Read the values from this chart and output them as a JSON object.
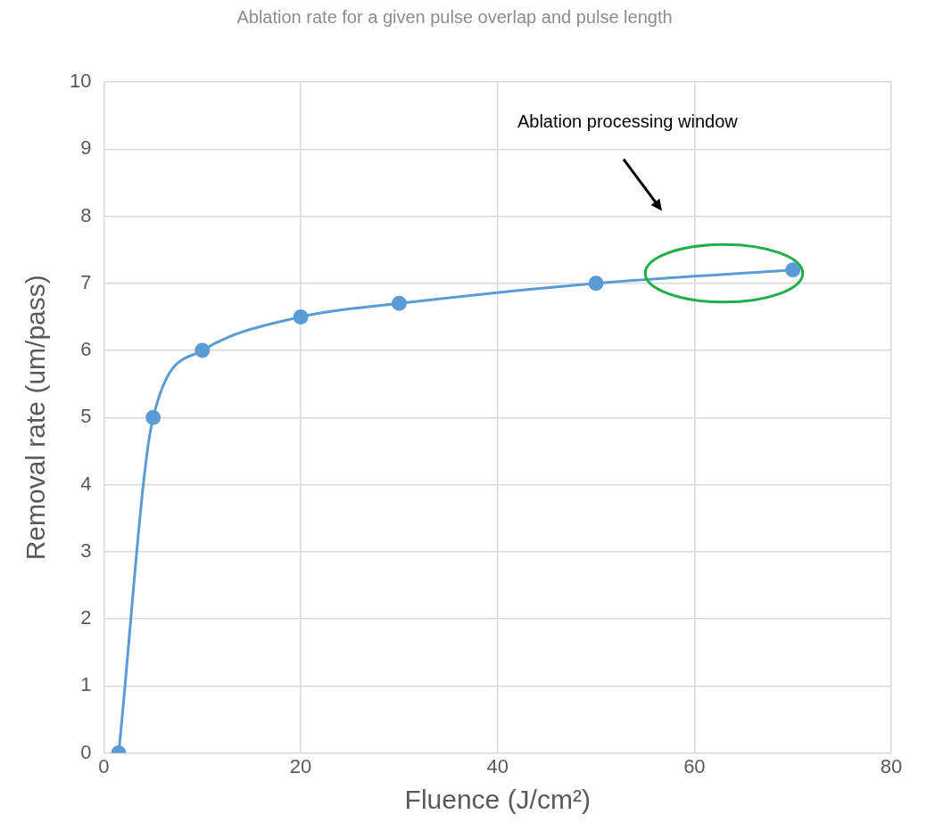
{
  "chart_data": {
    "type": "line",
    "title": "Ablation rate for a given pulse overlap and pulse length",
    "xlabel": "Fluence (J/cm²)",
    "ylabel": "Removal rate (um/pass)",
    "series": [
      {
        "color": "#5b9bd5",
        "x": [
          1.5,
          5,
          10,
          20,
          30,
          50,
          70
        ],
        "values": [
          0,
          5,
          6,
          6.5,
          6.7,
          7,
          7.2
        ]
      }
    ],
    "xlim": [
      0,
      80
    ],
    "xticks": [
      0,
      20,
      40,
      60,
      80
    ],
    "ylim": [
      0,
      10
    ],
    "yticks": [
      0,
      1,
      2,
      3,
      4,
      5,
      6,
      7,
      8,
      9,
      10
    ],
    "grid": true,
    "legend": false,
    "marker": "circle",
    "line_style": "solid",
    "annotations": [
      "Ablation processing window"
    ]
  }
}
